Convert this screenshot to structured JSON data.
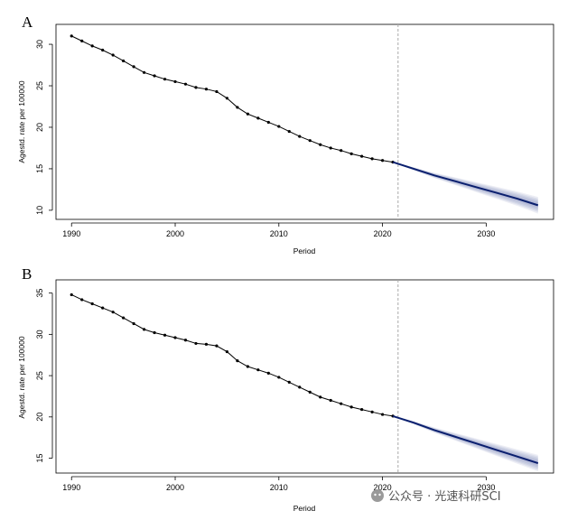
{
  "watermark": "公众号 · 光速科研SCI",
  "colors": {
    "observed": "#000000",
    "prediction": "#0a1f6e",
    "band": "#9aa3c8",
    "cutoff": "#aaaaaa"
  },
  "chart_data": [
    {
      "type": "line",
      "panel_label": "A",
      "xlabel": "Period",
      "ylabel": "Agestd. rate per 100000",
      "xlim": [
        1988.5,
        2036.5
      ],
      "ylim": [
        8.9,
        32.4
      ],
      "xticks": [
        1990,
        2000,
        2010,
        2020,
        2030
      ],
      "yticks": [
        10,
        15,
        20,
        25,
        30
      ],
      "cutoff_x": 2021.5,
      "observed": {
        "x": [
          1990,
          1991,
          1992,
          1993,
          1994,
          1995,
          1996,
          1997,
          1998,
          1999,
          2000,
          2001,
          2002,
          2003,
          2004,
          2005,
          2006,
          2007,
          2008,
          2009,
          2010,
          2011,
          2012,
          2013,
          2014,
          2015,
          2016,
          2017,
          2018,
          2019,
          2020,
          2021
        ],
        "y": [
          31.0,
          30.4,
          29.8,
          29.3,
          28.7,
          28.0,
          27.3,
          26.6,
          26.2,
          25.8,
          25.5,
          25.2,
          24.8,
          24.6,
          24.3,
          23.5,
          22.4,
          21.6,
          21.1,
          20.6,
          20.1,
          19.5,
          18.9,
          18.4,
          17.9,
          17.5,
          17.2,
          16.8,
          16.5,
          16.2,
          16.0,
          15.8
        ]
      },
      "prediction": {
        "x": [
          2021,
          2023,
          2025,
          2027,
          2029,
          2031,
          2033,
          2035
        ],
        "y": [
          15.8,
          15.0,
          14.2,
          13.5,
          12.8,
          12.1,
          11.4,
          10.6
        ],
        "band_half_width_start": 0.05,
        "band_half_width_end": 1.0
      }
    },
    {
      "type": "line",
      "panel_label": "B",
      "xlabel": "Period",
      "ylabel": "Agestd. rate per 100000",
      "xlim": [
        1988.5,
        2036.5
      ],
      "ylim": [
        13.2,
        36.6
      ],
      "xticks": [
        1990,
        2000,
        2010,
        2020,
        2030
      ],
      "yticks": [
        15,
        20,
        25,
        30,
        35
      ],
      "cutoff_x": 2021.5,
      "observed": {
        "x": [
          1990,
          1991,
          1992,
          1993,
          1994,
          1995,
          1996,
          1997,
          1998,
          1999,
          2000,
          2001,
          2002,
          2003,
          2004,
          2005,
          2006,
          2007,
          2008,
          2009,
          2010,
          2011,
          2012,
          2013,
          2014,
          2015,
          2016,
          2017,
          2018,
          2019,
          2020,
          2021
        ],
        "y": [
          34.8,
          34.2,
          33.7,
          33.2,
          32.7,
          32.0,
          31.3,
          30.6,
          30.2,
          29.9,
          29.6,
          29.3,
          28.9,
          28.8,
          28.6,
          27.9,
          26.8,
          26.1,
          25.7,
          25.3,
          24.8,
          24.2,
          23.6,
          23.0,
          22.4,
          22.0,
          21.6,
          21.2,
          20.9,
          20.6,
          20.3,
          20.1
        ]
      },
      "prediction": {
        "x": [
          2021,
          2023,
          2025,
          2027,
          2029,
          2031,
          2033,
          2035
        ],
        "y": [
          20.1,
          19.3,
          18.4,
          17.6,
          16.8,
          16.0,
          15.2,
          14.4
        ],
        "band_half_width_start": 0.05,
        "band_half_width_end": 1.0
      }
    }
  ]
}
